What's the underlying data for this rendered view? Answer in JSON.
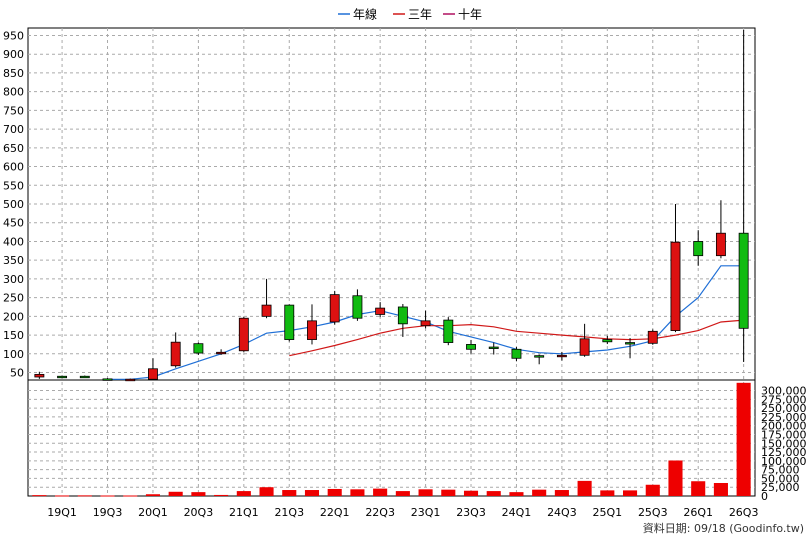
{
  "chart_data": {
    "type": "candlestick",
    "legend": [
      {
        "name": "年線",
        "color": "#1f6fd6"
      },
      {
        "name": "三年",
        "color": "#d01818"
      },
      {
        "name": "十年",
        "color": "#b01060"
      }
    ],
    "colors": {
      "up": "#dd1111",
      "down": "#11bb11",
      "border": "#000000",
      "volume": "#ee0000"
    },
    "x_tick_labels": [
      "19Q1",
      "19Q3",
      "20Q1",
      "20Q3",
      "21Q1",
      "21Q3",
      "22Q1",
      "22Q3",
      "23Q1",
      "23Q3",
      "24Q1",
      "24Q3",
      "25Q1",
      "25Q3",
      "26Q1",
      "26Q3"
    ],
    "price_axis": {
      "range": [
        30,
        970
      ],
      "ticks": [
        50,
        100,
        150,
        200,
        250,
        300,
        350,
        400,
        450,
        500,
        550,
        600,
        650,
        700,
        750,
        800,
        850,
        900,
        950
      ]
    },
    "volume_axis": {
      "range": [
        0,
        330000
      ],
      "ticks": [
        "0",
        "25,000",
        "50,000",
        "75,000",
        "100,000",
        "125,000",
        "150,000",
        "175,000",
        "200,000",
        "225,000",
        "250,000",
        "275,000",
        "300,000"
      ]
    },
    "candles": [
      {
        "q": "18Q4",
        "o": 38,
        "c": 45,
        "h": 52,
        "l": 33
      },
      {
        "q": "19Q1",
        "o": 40,
        "c": 38,
        "h": 42,
        "l": 36
      },
      {
        "q": "19Q2",
        "o": 40,
        "c": 38,
        "h": 42,
        "l": 36
      },
      {
        "q": "19Q3",
        "o": 33,
        "c": 32,
        "h": 35,
        "l": 30
      },
      {
        "q": "19Q4",
        "o": 31,
        "c": 32,
        "h": 34,
        "l": 28
      },
      {
        "q": "20Q1",
        "o": 32,
        "c": 60,
        "h": 88,
        "l": 32
      },
      {
        "q": "20Q2",
        "o": 68,
        "c": 131,
        "h": 157,
        "l": 63
      },
      {
        "q": "20Q3",
        "o": 127,
        "c": 102,
        "h": 130,
        "l": 97
      },
      {
        "q": "20Q4",
        "o": 100,
        "c": 104,
        "h": 112,
        "l": 97
      },
      {
        "q": "21Q1",
        "o": 108,
        "c": 195,
        "h": 198,
        "l": 105
      },
      {
        "q": "21Q2",
        "o": 200,
        "c": 230,
        "h": 300,
        "l": 195
      },
      {
        "q": "21Q3",
        "o": 230,
        "c": 138,
        "h": 232,
        "l": 133
      },
      {
        "q": "21Q4",
        "o": 138,
        "c": 188,
        "h": 232,
        "l": 125
      },
      {
        "q": "22Q1",
        "o": 185,
        "c": 258,
        "h": 268,
        "l": 178
      },
      {
        "q": "22Q2",
        "o": 255,
        "c": 195,
        "h": 272,
        "l": 188
      },
      {
        "q": "22Q3",
        "o": 205,
        "c": 222,
        "h": 238,
        "l": 198
      },
      {
        "q": "22Q4",
        "o": 225,
        "c": 180,
        "h": 233,
        "l": 145
      },
      {
        "q": "23Q1",
        "o": 175,
        "c": 188,
        "h": 215,
        "l": 168
      },
      {
        "q": "23Q2",
        "o": 190,
        "c": 130,
        "h": 198,
        "l": 123
      },
      {
        "q": "23Q3",
        "o": 125,
        "c": 112,
        "h": 137,
        "l": 100
      },
      {
        "q": "23Q4",
        "o": 118,
        "c": 115,
        "h": 130,
        "l": 98
      },
      {
        "q": "24Q1",
        "o": 112,
        "c": 88,
        "h": 118,
        "l": 80
      },
      {
        "q": "24Q2",
        "o": 95,
        "c": 94,
        "h": 98,
        "l": 72
      },
      {
        "q": "24Q3",
        "o": 92,
        "c": 96,
        "h": 105,
        "l": 82
      },
      {
        "q": "24Q4",
        "o": 96,
        "c": 140,
        "h": 180,
        "l": 92
      },
      {
        "q": "25Q1",
        "o": 138,
        "c": 132,
        "h": 148,
        "l": 126
      },
      {
        "q": "25Q2",
        "o": 130,
        "c": 128,
        "h": 142,
        "l": 88
      },
      {
        "q": "25Q3",
        "o": 128,
        "c": 160,
        "h": 165,
        "l": 124
      },
      {
        "q": "25Q4",
        "o": 162,
        "c": 398,
        "h": 500,
        "l": 158
      },
      {
        "q": "26Q1",
        "o": 400,
        "c": 362,
        "h": 430,
        "l": 335
      },
      {
        "q": "26Q2",
        "o": 362,
        "c": 422,
        "h": 510,
        "l": 355
      },
      {
        "q": "26Q3",
        "o": 422,
        "c": 168,
        "h": 965,
        "l": 78
      }
    ],
    "ma_series": [
      {
        "name": "年線",
        "values": [
          null,
          null,
          null,
          32,
          32,
          38,
          60,
          80,
          100,
          125,
          155,
          162,
          172,
          185,
          205,
          215,
          200,
          185,
          160,
          145,
          130,
          112,
          103,
          100,
          105,
          110,
          120,
          135,
          200,
          250,
          335,
          335
        ]
      },
      {
        "name": "三年",
        "values": [
          null,
          null,
          null,
          null,
          null,
          null,
          null,
          null,
          null,
          null,
          null,
          95,
          108,
          122,
          138,
          155,
          168,
          175,
          175,
          178,
          172,
          160,
          155,
          150,
          145,
          140,
          138,
          140,
          150,
          162,
          185,
          190
        ]
      }
    ],
    "volume": [
      2500,
      1500,
      1800,
      1400,
      1400,
      5000,
      12000,
      11000,
      3000,
      14000,
      25000,
      17000,
      17000,
      20000,
      19000,
      21000,
      14000,
      19000,
      18000,
      15000,
      14000,
      11000,
      18000,
      17000,
      43000,
      16000,
      16000,
      32000,
      101000,
      42000,
      37000,
      322000
    ],
    "footer": "資料日期: 09/18  (Goodinfo.tw)"
  }
}
